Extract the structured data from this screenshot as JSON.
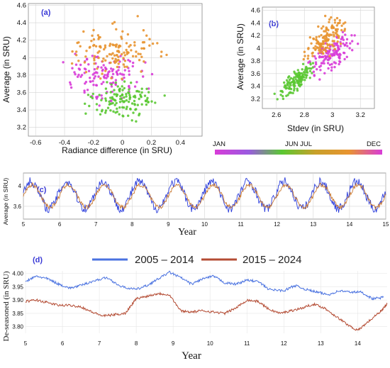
{
  "chart_data": [
    {
      "panel": "(a)",
      "type": "scatter",
      "xlabel": "Radiance difference (in SRU)",
      "ylabel": "Average (in SRU)",
      "xlim": [
        -0.65,
        0.55
      ],
      "ylim": [
        3.1,
        4.62
      ],
      "xticks": [
        -0.6,
        -0.4,
        -0.2,
        0,
        0.2,
        0.4
      ],
      "yticks": [
        3.2,
        3.4,
        3.6,
        3.8,
        4,
        4.2,
        4.4,
        4.6
      ],
      "xtick_labels": [
        "-0.6",
        "-0.4",
        "-0.2",
        "0",
        "0.2",
        "0.4"
      ],
      "ytick_labels": [
        "3.2",
        "3.4",
        "3.6",
        "3.8",
        "4",
        "4.2",
        "4.4",
        "4.6"
      ],
      "grid": true,
      "color_by": "month",
      "clusters": [
        {
          "season": "winter",
          "color": "#d83cd8",
          "center_x": -0.12,
          "center_y": 3.78,
          "spread_x": 0.16,
          "spread_y": 0.16
        },
        {
          "season": "spring-summer",
          "color": "#5ac832",
          "center_x": 0.0,
          "center_y": 3.5,
          "spread_x": 0.15,
          "spread_y": 0.14
        },
        {
          "season": "autumn",
          "color": "#e89430",
          "center_x": -0.05,
          "center_y": 4.08,
          "spread_x": 0.2,
          "spread_y": 0.2
        }
      ]
    },
    {
      "panel": "(b)",
      "type": "scatter",
      "xlabel": "Stdev (in SRU)",
      "ylabel": "Average (in SRU)",
      "xlim": [
        2.5,
        3.3
      ],
      "ylim": [
        3.05,
        4.65
      ],
      "xticks": [
        2.6,
        2.8,
        3,
        3.2
      ],
      "yticks": [
        3.2,
        3.4,
        3.6,
        3.8,
        4,
        4.2,
        4.4,
        4.6
      ],
      "xtick_labels": [
        "2.6",
        "2.8",
        "3",
        "3.2"
      ],
      "ytick_labels": [
        "3.2",
        "3.4",
        "3.6",
        "3.8",
        "4",
        "4.2",
        "4.4",
        "4.6"
      ],
      "grid": true,
      "color_by": "month",
      "clusters": [
        {
          "season": "spring-summer",
          "color": "#5ac832",
          "center_x": 2.74,
          "center_y": 3.5,
          "spread_x": 0.08,
          "spread_y": 0.12
        },
        {
          "season": "winter",
          "color": "#d83cd8",
          "center_x": 3.0,
          "center_y": 3.9,
          "spread_x": 0.1,
          "spread_y": 0.18
        },
        {
          "season": "autumn",
          "color": "#e89430",
          "center_x": 2.95,
          "center_y": 4.15,
          "spread_x": 0.1,
          "spread_y": 0.2
        }
      ]
    },
    {
      "panel": "(c)",
      "type": "line",
      "xlabel": "Year",
      "ylabel": "Average (in SRU)",
      "xlim": [
        5,
        15
      ],
      "ylim": [
        3.35,
        4.25
      ],
      "xticks": [
        5,
        6,
        7,
        8,
        9,
        10,
        11,
        12,
        13,
        14,
        15
      ],
      "yticks": [
        3.6,
        4
      ],
      "xtick_labels": [
        "5",
        "6",
        "7",
        "8",
        "9",
        "10",
        "11",
        "12",
        "13",
        "14",
        "15"
      ],
      "ytick_labels": [
        "3.6",
        "4"
      ],
      "grid": true,
      "series": [
        {
          "color": "#2a3cdc",
          "mean": 3.82,
          "seasonal_amplitude": 0.26,
          "cycles_per_year": 1
        },
        {
          "color": "#c87832",
          "mean": 3.8,
          "seasonal_amplitude": 0.22,
          "cycles_per_year": 1
        }
      ]
    },
    {
      "panel": "(d)",
      "type": "line",
      "xlabel": "Year",
      "ylabel": "De-seasoned (in SRU)",
      "xlim": [
        5,
        14.8
      ],
      "ylim": [
        3.775,
        4.01
      ],
      "xticks": [
        5,
        6,
        7,
        8,
        9,
        10,
        11,
        12,
        13,
        14
      ],
      "yticks": [
        3.8,
        3.85,
        3.9,
        3.95,
        4.0
      ],
      "xtick_labels": [
        "5",
        "6",
        "7",
        "8",
        "9",
        "10",
        "11",
        "12",
        "13",
        "14"
      ],
      "ytick_labels": [
        "3.80",
        "3.85",
        "3.90",
        "3.95",
        "4.00"
      ],
      "grid": true,
      "legend": "top",
      "series": [
        {
          "name": "2005 – 2014",
          "color": "#4a72e0",
          "x": [
            5.0,
            5.3,
            5.6,
            5.9,
            6.2,
            6.5,
            6.8,
            7.2,
            7.6,
            8.0,
            8.3,
            8.6,
            8.9,
            9.2,
            9.5,
            9.8,
            10.1,
            10.4,
            10.7,
            11.0,
            11.3,
            11.6,
            12.0,
            12.3,
            12.6,
            12.9,
            13.2,
            13.5,
            13.8,
            14.1,
            14.4,
            14.7
          ],
          "values": [
            3.97,
            3.99,
            3.98,
            3.96,
            3.945,
            3.955,
            3.97,
            3.985,
            3.95,
            3.94,
            3.955,
            3.98,
            4.005,
            3.985,
            3.96,
            3.98,
            3.99,
            3.965,
            3.96,
            3.975,
            3.97,
            3.94,
            3.935,
            3.955,
            3.94,
            3.93,
            3.92,
            3.935,
            3.93,
            3.93,
            3.905,
            3.91
          ]
        },
        {
          "name": "2015 – 2024",
          "color": "#b44c34",
          "x": [
            5.0,
            5.3,
            5.6,
            5.9,
            6.2,
            6.5,
            6.8,
            7.1,
            7.4,
            7.7,
            8.0,
            8.3,
            8.6,
            8.9,
            9.2,
            9.5,
            9.8,
            10.1,
            10.4,
            10.7,
            11.0,
            11.3,
            11.6,
            11.9,
            12.2,
            12.5,
            12.8,
            13.1,
            13.4,
            13.7,
            14.0,
            14.3,
            14.6,
            14.8
          ],
          "values": [
            3.895,
            3.9,
            3.89,
            3.88,
            3.88,
            3.875,
            3.855,
            3.84,
            3.845,
            3.85,
            3.905,
            3.915,
            3.925,
            3.92,
            3.86,
            3.855,
            3.86,
            3.855,
            3.85,
            3.87,
            3.9,
            3.895,
            3.865,
            3.85,
            3.86,
            3.87,
            3.885,
            3.87,
            3.84,
            3.81,
            3.785,
            3.82,
            3.855,
            3.885
          ]
        }
      ]
    }
  ],
  "colorbar": {
    "labels": {
      "start": "JAN",
      "mid": "JUN JUL",
      "end": "DEC"
    },
    "colors": [
      "#d83cd8",
      "#9a5ae0",
      "#5ac832",
      "#c8a02a",
      "#e89430",
      "#d83cd8"
    ]
  }
}
